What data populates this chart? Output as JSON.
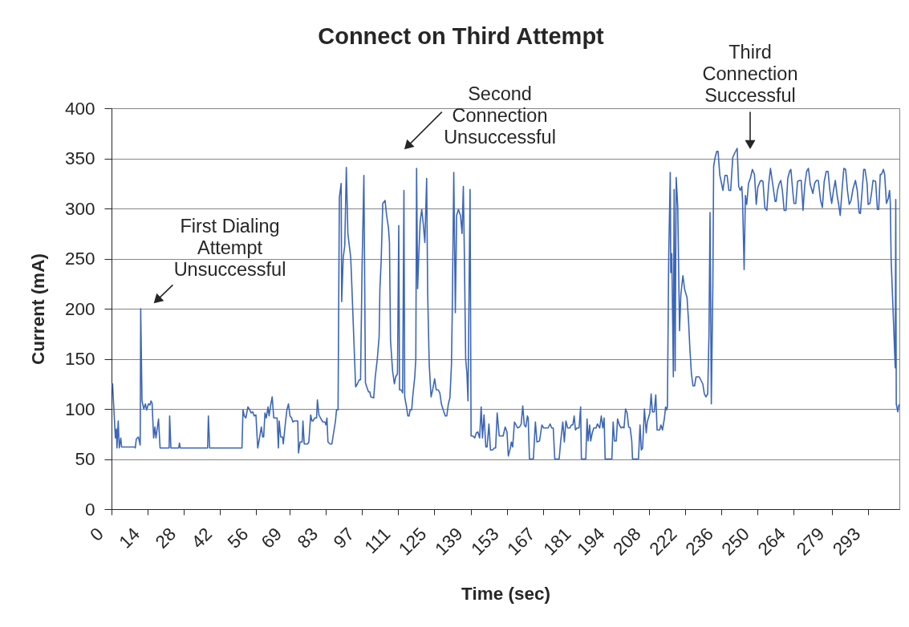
{
  "chart_data": {
    "type": "line",
    "title": "Connect on Third Attempt",
    "xlabel": "Time (sec)",
    "ylabel": "Current (mA)",
    "xlim": [
      0,
      305
    ],
    "xticks": [
      0,
      14,
      28,
      42,
      56,
      69,
      83,
      97,
      111,
      125,
      139,
      153,
      167,
      181,
      194,
      208,
      222,
      236,
      250,
      264,
      279,
      293
    ],
    "ylim": [
      0,
      400
    ],
    "yticks": [
      0,
      50,
      100,
      150,
      200,
      250,
      300,
      350,
      400
    ],
    "grid": "y",
    "line_style": "solid",
    "x": [
      0.4,
      1.5,
      1.9,
      2.1,
      2.6,
      3.0,
      3.6,
      3.9,
      9.0,
      9.2,
      9.6,
      10.4,
      11.1,
      11.3,
      11.8,
      12.5,
      13.1,
      13.6,
      14.3,
      14.9,
      15.3,
      15.7,
      16.3,
      16.8,
      17.2,
      18.2,
      18.8,
      22.3,
      22.5,
      23.0,
      26.0,
      26.3,
      26.6,
      37.2,
      37.5,
      38.0,
      50.5,
      50.9,
      51.4,
      52.0,
      52.8,
      53.5,
      54.0,
      54.7,
      55.2,
      55.9,
      56.6,
      57.3,
      58.0,
      58.5,
      58.9,
      59.4,
      59.9,
      60.6,
      61.0,
      61.5,
      62.2,
      62.8,
      64.1,
      64.6,
      64.9,
      65.5,
      66.2,
      66.5,
      67.4,
      67.9,
      68.5,
      69.1,
      69.7,
      70.2,
      70.8,
      72.1,
      72.4,
      73.0,
      73.8,
      74.1,
      74.6,
      75.9,
      76.4,
      77.1,
      77.6,
      78.0,
      78.7,
      79.4,
      79.7,
      80.3,
      81.1,
      81.8,
      82.6,
      83.0,
      83.4,
      83.8,
      84.6,
      85.3,
      86.7,
      87.1,
      87.7,
      88.2,
      88.9,
      89.1,
      89.7,
      90.3,
      90.9,
      91.5,
      92.6,
      92.9,
      94.5,
      95.2,
      95.9,
      96.4,
      97.0,
      97.7,
      98.3,
      98.8,
      99.5,
      100.0,
      100.4,
      101.5,
      102.1,
      102.9,
      103.6,
      103.9,
      104.4,
      105.0,
      105.9,
      106.5,
      107.2,
      107.6,
      108.0,
      108.8,
      109.5,
      110.0,
      110.7,
      111.2,
      111.5,
      112.1,
      112.7,
      113.2,
      113.5,
      114.2,
      114.7,
      115.2,
      115.6,
      116.2,
      116.6,
      117.4,
      117.8,
      118.1,
      118.5,
      119.0,
      119.5,
      120.1,
      120.7,
      121.3,
      122.0,
      122.4,
      123.0,
      123.7,
      124.4,
      125.1,
      125.7,
      126.5,
      127.1,
      127.7,
      128.4,
      129.2,
      129.8,
      130.4,
      131.0,
      131.6,
      131.9,
      132.5,
      133.1,
      133.6,
      134.3,
      135.1,
      135.7,
      136.2,
      136.6,
      137.1,
      137.6,
      138.0,
      138.8,
      139.2,
      139.9,
      140.6,
      141.2,
      141.8,
      142.5,
      143.1,
      143.6,
      144.2,
      144.9,
      145.4,
      146.1,
      146.7,
      147.5,
      148.2,
      148.7,
      149.3,
      150.1,
      150.8,
      151.6,
      152.4,
      153.1,
      153.6,
      154.4,
      154.8,
      155.3,
      156.0,
      156.6,
      157.2,
      158.0,
      158.6,
      159.2,
      159.8,
      160.4,
      161.0,
      161.3,
      161.8,
      163.3,
      164.1,
      164.7,
      165.7,
      166.6,
      167.3,
      168.0,
      169.0,
      169.8,
      170.4,
      171.0,
      171.6,
      173.3,
      173.9,
      174.7,
      175.3,
      175.9,
      176.6,
      177.5,
      178.0,
      178.6,
      179.1,
      179.6,
      180.2,
      181.0,
      181.6,
      181.9,
      183.6,
      184.1,
      184.5,
      185.1,
      185.5,
      186.1,
      186.7,
      187.6,
      188.1,
      189.0,
      189.6,
      190.2,
      190.7,
      191.1,
      193.7,
      194.2,
      194.7,
      195.4,
      195.9,
      196.6,
      197.3,
      198.0,
      198.4,
      199.0,
      199.6,
      200.2,
      200.8,
      201.4,
      201.7,
      204.0,
      204.6,
      205.1,
      205.6,
      206.3,
      207.0,
      207.4,
      208.4,
      208.9,
      209.4,
      210.1,
      210.7,
      211.2,
      212.2,
      212.7,
      213.3,
      214.0,
      214.5,
      214.9,
      215.2,
      215.7,
      216.3,
      216.5,
      216.9,
      217.5,
      217.8,
      218.2,
      218.6,
      219.2,
      219.9,
      220.4,
      221.2,
      221.9,
      222.8,
      223.4,
      223.9,
      224.5,
      225.1,
      225.7,
      226.3,
      227.5,
      228.1,
      228.9,
      229.5,
      230.1,
      230.8,
      231.3,
      231.7,
      232.2,
      232.8,
      233.1,
      233.6,
      234.3,
      234.8,
      235.5,
      236.0,
      236.7,
      237.5,
      238.3,
      239.0,
      239.7,
      240.5,
      241.4,
      242.2,
      242.8,
      243.4,
      244.0,
      244.3,
      244.9,
      245.4,
      245.9,
      246.6,
      247.3,
      248.1,
      248.9,
      249.6,
      250.2,
      251.1,
      251.6,
      252.2,
      252.9,
      253.7,
      254.4,
      255.1,
      256.1,
      256.9,
      257.3,
      257.8,
      258.5,
      259.1,
      259.7,
      260.4,
      261.1,
      261.8,
      262.5,
      263.0,
      263.7,
      264.2,
      264.9,
      265.6,
      266.4,
      267.0,
      267.7,
      268.4,
      269.1,
      269.8,
      270.5,
      271.5,
      272.2,
      272.9,
      273.6,
      274.5,
      275.2,
      275.9,
      276.7,
      277.4,
      278.1,
      278.8,
      279.5,
      280.2,
      280.9,
      281.5,
      282.1,
      282.8,
      283.5,
      284.2,
      284.9,
      285.6,
      286.3,
      287.0,
      288.0,
      288.7,
      289.4,
      289.9,
      290.6,
      291.2,
      291.7,
      292.5,
      292.9,
      293.6,
      294.2,
      294.8,
      295.8,
      296.5,
      297.0,
      297.6,
      298.1,
      298.8,
      299.3,
      300.0,
      300.7,
      301.2,
      301.5,
      301.8,
      303.4,
      303.6,
      303.8,
      304.4,
      304.8
    ],
    "series": [
      {
        "color": "#3c66b8",
        "values": [
          125,
          71,
          80,
          61,
          88,
          61,
          71,
          62,
          62,
          61,
          70,
          72,
          64,
          200,
          108,
          100,
          105,
          99,
          105,
          104,
          108,
          106,
          71,
          82,
          71,
          90,
          61,
          61,
          93,
          61,
          61,
          66,
          61,
          61,
          93,
          61,
          61,
          99,
          93,
          91,
          102,
          99,
          96,
          97,
          93,
          94,
          61,
          71,
          82,
          72,
          72,
          96,
          91,
          102,
          93,
          102,
          112,
          91,
          91,
          61,
          88,
          72,
          72,
          65,
          88,
          99,
          105,
          93,
          91,
          87,
          88,
          88,
          56,
          67,
          67,
          88,
          65,
          65,
          67,
          94,
          88,
          88,
          91,
          91,
          109,
          94,
          90,
          87,
          87,
          84,
          91,
          67,
          65,
          65,
          88,
          99,
          99,
          311,
          325,
          207,
          251,
          263,
          341,
          275,
          251,
          232,
          122,
          125,
          129,
          129,
          242,
          333,
          126,
          122,
          117,
          117,
          112,
          111,
          132,
          150,
          172,
          220,
          248,
          305,
          308,
          293,
          281,
          266,
          169,
          138,
          125,
          132,
          135,
          283,
          119,
          119,
          116,
          318,
          112,
          102,
          93,
          93,
          99,
          99,
          112,
          132,
          150,
          340,
          220,
          257,
          287,
          299,
          284,
          266,
          330,
          214,
          144,
          112,
          120,
          130,
          119,
          119,
          116,
          105,
          99,
          93,
          93,
          105,
          111,
          144,
          196,
          336,
          196,
          293,
          299,
          293,
          275,
          322,
          254,
          150,
          135,
          108,
          319,
          73,
          73,
          71,
          76,
          77,
          71,
          102,
          71,
          94,
          62,
          62,
          85,
          59,
          59,
          61,
          61,
          96,
          73,
          73,
          73,
          82,
          77,
          53,
          61,
          67,
          62,
          87,
          84,
          81,
          82,
          85,
          103,
          84,
          82,
          93,
          91,
          50,
          50,
          87,
          67,
          68,
          84,
          81,
          81,
          81,
          85,
          81,
          81,
          50,
          50,
          68,
          87,
          67,
          88,
          81,
          81,
          84,
          84,
          93,
          79,
          81,
          81,
          102,
          50,
          50,
          90,
          68,
          84,
          68,
          76,
          81,
          81,
          85,
          81,
          93,
          81,
          91,
          50,
          50,
          87,
          68,
          68,
          90,
          84,
          81,
          82,
          81,
          100,
          96,
          82,
          81,
          68,
          50,
          50,
          84,
          59,
          61,
          100,
          76,
          87,
          96,
          115,
          97,
          97,
          114,
          79,
          79,
          84,
          79,
          90,
          102,
          99,
          102,
          251,
          336,
          236,
          255,
          132,
          319,
          138,
          331,
          302,
          178,
          214,
          233,
          219,
          211,
          187,
          160,
          135,
          123,
          123,
          132,
          132,
          129,
          125,
          115,
          112,
          115,
          175,
          296,
          105,
          226,
          342,
          350,
          357,
          357,
          333,
          327,
          318,
          333,
          333,
          318,
          318,
          351,
          356,
          360,
          322,
          318,
          322,
          308,
          239,
          313,
          304,
          325,
          330,
          339,
          334,
          304,
          321,
          327,
          328,
          327,
          301,
          298,
          324,
          340,
          322,
          307,
          307,
          318,
          325,
          328,
          318,
          298,
          298,
          330,
          337,
          339,
          318,
          305,
          305,
          327,
          328,
          328,
          298,
          324,
          337,
          340,
          324,
          315,
          325,
          328,
          328,
          308,
          301,
          327,
          337,
          337,
          318,
          305,
          318,
          328,
          313,
          304,
          293,
          318,
          340,
          339,
          318,
          304,
          308,
          319,
          328,
          318,
          296,
          295,
          318,
          339,
          339,
          325,
          304,
          305,
          315,
          328,
          327,
          299,
          299,
          334,
          334,
          339,
          334,
          305,
          310,
          318,
          305,
          250,
          141,
          309,
          105,
          97,
          104
        ]
      }
    ],
    "annotations": [
      "First Dialing\nAttempt\nUnsuccessful",
      "Second\nConnection\nUnsuccessful",
      "Third\nConnection\nSuccessful"
    ]
  }
}
